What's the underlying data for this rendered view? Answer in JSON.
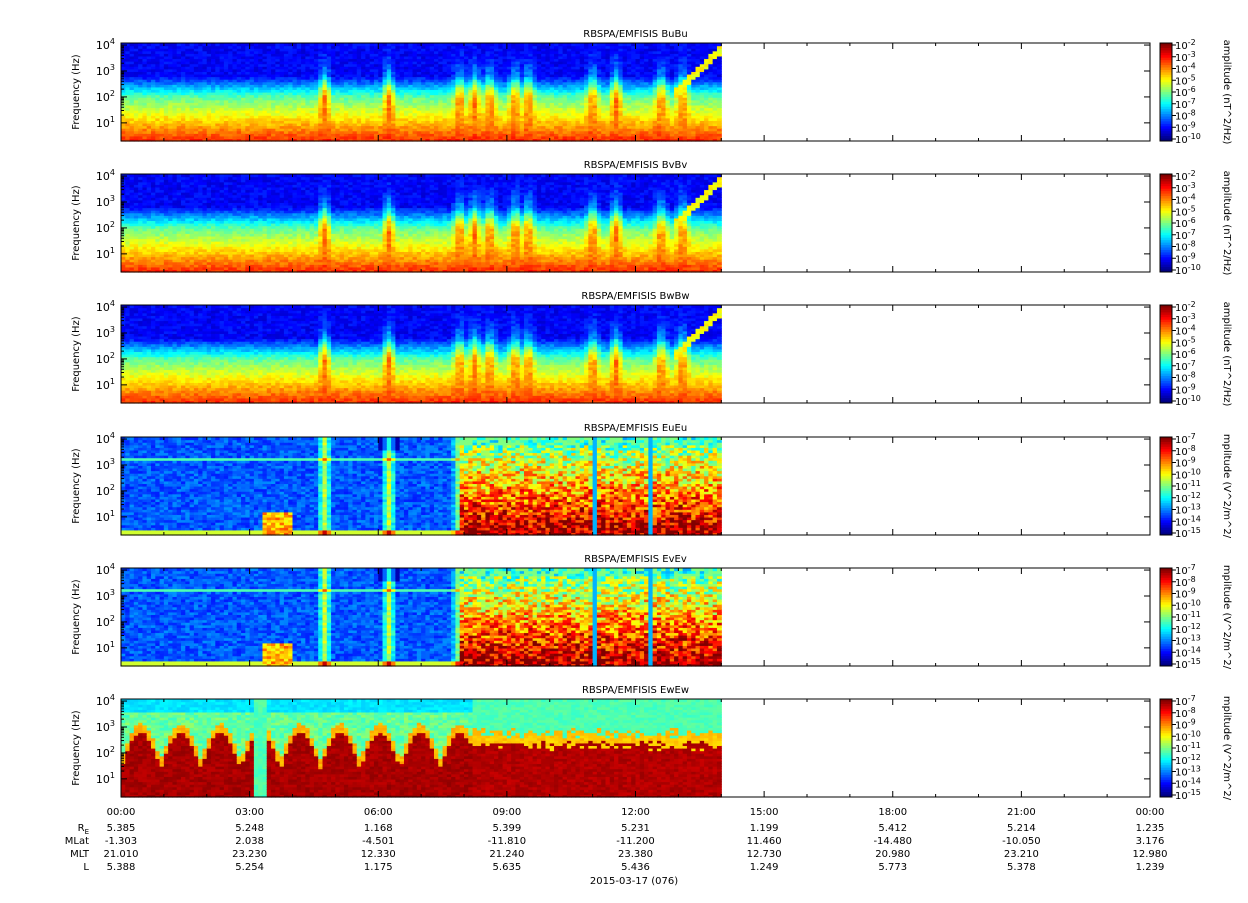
{
  "chart_data": {
    "type": "heatmap",
    "date_label": "2015-03-17 (076)",
    "x_ticks": [
      "00:00",
      "03:00",
      "06:00",
      "09:00",
      "12:00",
      "15:00",
      "18:00",
      "21:00",
      "00:00"
    ],
    "x_range_hours": [
      0,
      24
    ],
    "data_end_hours": 14.0,
    "y_axis": {
      "label": "Frequency (Hz)",
      "scale": "log",
      "range": [
        2,
        12000
      ],
      "tick_values": [
        10,
        100,
        1000,
        10000
      ],
      "tick_exponents": [
        "1",
        "2",
        "3",
        "4"
      ]
    },
    "panels": [
      {
        "title": "RBSPA/EMFISIS  BuBu",
        "kind": "B",
        "colorbar_label": "amplitude (nT^2/Hz)",
        "colorbar_exponents": [
          "-2",
          "-3",
          "-4",
          "-5",
          "-6",
          "-7",
          "-8",
          "-9",
          "-10"
        ]
      },
      {
        "title": "RBSPA/EMFISIS  BvBv",
        "kind": "B",
        "colorbar_label": "amplitude (nT^2/Hz)",
        "colorbar_exponents": [
          "-2",
          "-3",
          "-4",
          "-5",
          "-6",
          "-7",
          "-8",
          "-9",
          "-10"
        ]
      },
      {
        "title": "RBSPA/EMFISIS  BwBw",
        "kind": "B",
        "colorbar_label": "amplitude (nT^2/Hz)",
        "colorbar_exponents": [
          "-2",
          "-3",
          "-4",
          "-5",
          "-6",
          "-7",
          "-8",
          "-9",
          "-10"
        ]
      },
      {
        "title": "RBSPA/EMFISIS  EuEu",
        "kind": "E",
        "colorbar_label": "mplitude (V^2/m^2/",
        "colorbar_exponents": [
          "-7",
          "-8",
          "-9",
          "-10",
          "-11",
          "-12",
          "-13",
          "-14",
          "-15"
        ]
      },
      {
        "title": "RBSPA/EMFISIS  EvEv",
        "kind": "E",
        "colorbar_label": "mplitude (V^2/m^2/",
        "colorbar_exponents": [
          "-7",
          "-8",
          "-9",
          "-10",
          "-11",
          "-12",
          "-13",
          "-14",
          "-15"
        ]
      },
      {
        "title": "RBSPA/EMFISIS  EwEw",
        "kind": "Ew",
        "colorbar_label": "mplitude (V^2/m^2/",
        "colorbar_exponents": [
          "-7",
          "-8",
          "-9",
          "-10",
          "-11",
          "-12",
          "-13",
          "-14",
          "-15"
        ]
      }
    ],
    "ephemeris": [
      {
        "label": "R",
        "label_sub": "E",
        "values": [
          "5.385",
          "5.248",
          "1.168",
          "5.399",
          "5.231",
          "1.199",
          "5.412",
          "5.214",
          "1.235"
        ]
      },
      {
        "label": "MLat",
        "values": [
          "-1.303",
          "2.038",
          "-4.501",
          "-11.810",
          "-11.200",
          "11.460",
          "-14.480",
          "-10.050",
          "3.176"
        ]
      },
      {
        "label": "MLT",
        "values": [
          "21.010",
          "23.230",
          "12.330",
          "21.240",
          "23.380",
          "12.730",
          "20.980",
          "23.210",
          "12.980"
        ]
      },
      {
        "label": "L",
        "values": [
          "5.388",
          "5.254",
          "1.175",
          "5.635",
          "5.436",
          "1.249",
          "5.773",
          "5.378",
          "1.239"
        ]
      }
    ]
  }
}
